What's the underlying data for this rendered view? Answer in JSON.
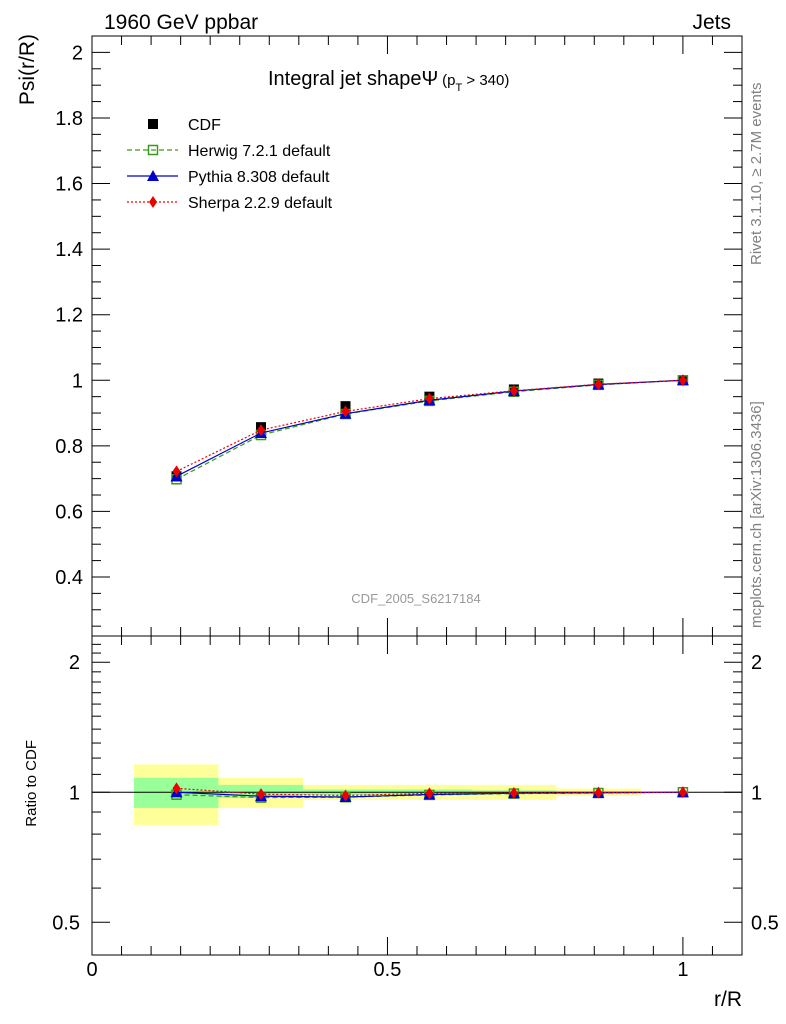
{
  "header": {
    "left": "1960 GeV ppbar",
    "right": "Jets"
  },
  "side_labels": {
    "rivet": "Rivet 3.1.10, ≥ 2.7M events",
    "mcplots": "mcplots.cern.ch [arXiv:1306.3436]"
  },
  "analysis_id": "CDF_2005_S6217184",
  "chart_data": [
    {
      "type": "line",
      "title": "Integral jet shapeΨ",
      "title_sub": "(p",
      "title_sub_index": "T",
      "title_sub_tail": " > 340)",
      "ylabel": "Psi(r/R)",
      "xlim": [
        0,
        1.1
      ],
      "ylim": [
        0.22,
        2.05
      ],
      "yticks": [
        0.4,
        0.6,
        0.8,
        1,
        1.2,
        1.4,
        1.6,
        1.8,
        2
      ],
      "ytick_labels": [
        "0.4",
        "0.6",
        "0.8",
        "1",
        "1.2",
        "1.4",
        "1.6",
        "1.8",
        "2"
      ],
      "x": [
        0.143,
        0.286,
        0.429,
        0.571,
        0.714,
        0.857,
        1.0
      ],
      "series": [
        {
          "name": "CDF",
          "color": "#000000",
          "marker": "square",
          "line": "none",
          "values": [
            0.707,
            0.857,
            0.921,
            0.95,
            0.972,
            0.99,
            1.0
          ]
        },
        {
          "name": "Herwig 7.2.1 default",
          "color": "#3a9a1a",
          "marker": "open-square",
          "line": "dashed",
          "values": [
            0.698,
            0.833,
            0.897,
            0.937,
            0.965,
            0.986,
            1.0
          ]
        },
        {
          "name": "Pythia 8.308 default",
          "color": "#0000cc",
          "marker": "triangle",
          "line": "solid",
          "values": [
            0.707,
            0.839,
            0.898,
            0.939,
            0.967,
            0.987,
            1.0
          ]
        },
        {
          "name": "Sherpa 2.2.9 default",
          "color": "#ee0000",
          "marker": "diamond",
          "line": "dotted",
          "values": [
            0.722,
            0.848,
            0.905,
            0.944,
            0.968,
            0.988,
            1.0
          ]
        }
      ],
      "legend": "top-left"
    },
    {
      "type": "line",
      "title": "",
      "ylabel": "Ratio to CDF",
      "xlabel": "r/R",
      "scale": "log",
      "xlim": [
        0,
        1.1
      ],
      "ylim": [
        0.42,
        2.3
      ],
      "yticks": [
        0.5,
        1,
        2
      ],
      "ytick_labels": [
        "0.5",
        "1",
        "2"
      ],
      "xticks": [
        0,
        0.5,
        1
      ],
      "xtick_labels": [
        "0",
        "0.5",
        "1"
      ],
      "bands": [
        {
          "x0": 0.071,
          "x1": 0.214,
          "inner": [
            0.92,
            1.08
          ],
          "outer": [
            0.84,
            1.16
          ]
        },
        {
          "x0": 0.214,
          "x1": 0.357,
          "inner": [
            0.97,
            1.04
          ],
          "outer": [
            0.92,
            1.08
          ]
        },
        {
          "x0": 0.357,
          "x1": 0.5,
          "inner": [
            0.985,
            1.015
          ],
          "outer": [
            0.96,
            1.04
          ]
        },
        {
          "x0": 0.5,
          "x1": 0.643,
          "inner": [
            0.985,
            1.015
          ],
          "outer": [
            0.96,
            1.04
          ]
        },
        {
          "x0": 0.643,
          "x1": 0.786,
          "inner": [
            0.99,
            1.01
          ],
          "outer": [
            0.96,
            1.04
          ]
        },
        {
          "x0": 0.786,
          "x1": 0.929,
          "inner": [
            0.995,
            1.005
          ],
          "outer": [
            0.98,
            1.02
          ]
        }
      ],
      "band_colors": {
        "inner": "#99ff99",
        "outer": "#ffff99"
      },
      "x": [
        0.143,
        0.286,
        0.429,
        0.571,
        0.714,
        0.857,
        1.0
      ],
      "series": [
        {
          "name": "Herwig 7.2.1 default",
          "color": "#3a9a1a",
          "marker": "open-square",
          "line": "dashed",
          "values": [
            0.987,
            0.972,
            0.974,
            0.986,
            0.993,
            0.996,
            1.0
          ]
        },
        {
          "name": "Pythia 8.308 default",
          "color": "#0000cc",
          "marker": "triangle",
          "line": "solid",
          "values": [
            1.0,
            0.979,
            0.975,
            0.988,
            0.995,
            0.997,
            1.0
          ]
        },
        {
          "name": "Sherpa 2.2.9 default",
          "color": "#ee0000",
          "marker": "diamond",
          "line": "dotted",
          "values": [
            1.021,
            0.99,
            0.983,
            0.994,
            0.996,
            0.998,
            1.0
          ]
        }
      ]
    }
  ]
}
